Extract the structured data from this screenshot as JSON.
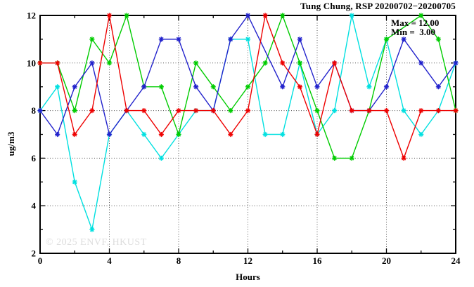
{
  "chart_data": {
    "type": "line",
    "title": "Tung Chung, RSP 20200702−20200705",
    "xlabel": "Hours",
    "ylabel": "ug/m3",
    "xlim": [
      0,
      24
    ],
    "ylim": [
      2,
      12
    ],
    "grid": "dotted, at x 4,8,12,16,20 and y 4,6,8,10",
    "legend_position": "none",
    "xticks_major": [
      0,
      4,
      8,
      12,
      16,
      20,
      24
    ],
    "xticks_minor": [
      2,
      6,
      10,
      14,
      18,
      22
    ],
    "yticks_major": [
      2,
      4,
      6,
      8,
      10,
      12
    ],
    "yticks_minor": [
      3,
      5,
      7,
      9,
      11
    ],
    "grid_x": [
      4,
      8,
      12,
      16,
      20
    ],
    "grid_y": [
      4,
      6,
      8,
      10
    ],
    "x": [
      0,
      1,
      2,
      3,
      4,
      5,
      6,
      7,
      8,
      9,
      10,
      11,
      12,
      13,
      14,
      15,
      16,
      17,
      18,
      19,
      20,
      21,
      22,
      23,
      24
    ],
    "series": [
      {
        "name": "series-cyan",
        "color": "#00e0e0",
        "values": [
          8,
          9,
          5,
          3,
          7,
          8,
          7,
          6,
          7,
          8,
          8,
          11,
          11,
          7,
          7,
          10,
          7,
          8,
          12,
          9,
          11,
          8,
          7,
          8,
          10
        ]
      },
      {
        "name": "series-green",
        "color": "#00cc00",
        "values": [
          10,
          10,
          8,
          11,
          10,
          12,
          9,
          9,
          7,
          10,
          9,
          8,
          9,
          10,
          12,
          10,
          8,
          6,
          6,
          8,
          11,
          null,
          12,
          11,
          8
        ]
      },
      {
        "name": "series-blue",
        "color": "#2222cc",
        "values": [
          8,
          7,
          9,
          10,
          7,
          8,
          9,
          11,
          11,
          9,
          8,
          11,
          12,
          null,
          9,
          11,
          9,
          10,
          8,
          8,
          9,
          11,
          10,
          9,
          10
        ]
      },
      {
        "name": "series-red",
        "color": "#ee0000",
        "values": [
          10,
          10,
          7,
          8,
          12,
          8,
          8,
          7,
          8,
          8,
          8,
          7,
          8,
          12,
          10,
          9,
          7,
          10,
          8,
          8,
          8,
          6,
          8,
          8,
          8
        ]
      }
    ]
  },
  "annotations": {
    "max_label": "Max = 12.00",
    "min_label": "Min =  3.00",
    "copyright": "© 2025 ENVF, HKUST"
  }
}
